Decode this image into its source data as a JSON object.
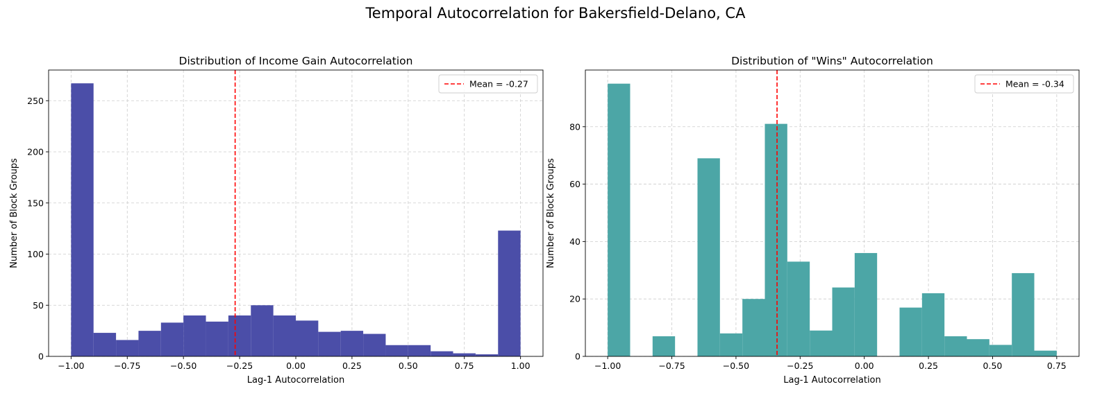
{
  "suptitle": "Temporal Autocorrelation for Bakersfield-Delano, CA",
  "chart_data": [
    {
      "type": "bar",
      "title": "Distribution of Income Gain Autocorrelation",
      "xlabel": "Lag-1 Autocorrelation",
      "ylabel": "Number of Block Groups",
      "xlim": [
        -1.1,
        1.1
      ],
      "ylim": [
        0,
        280
      ],
      "xticks": [
        -1.0,
        -0.75,
        -0.5,
        -0.25,
        0.0,
        0.25,
        0.5,
        0.75,
        1.0
      ],
      "xtick_labels": [
        "−1.00",
        "−0.75",
        "−0.50",
        "−0.25",
        "0.00",
        "0.25",
        "0.50",
        "0.75",
        "1.00"
      ],
      "yticks": [
        0,
        50,
        100,
        150,
        200,
        250
      ],
      "ytick_labels": [
        "0",
        "50",
        "100",
        "150",
        "200",
        "250"
      ],
      "grid": true,
      "bin_edges": [
        -1.0,
        -0.9,
        -0.8,
        -0.7,
        -0.6,
        -0.5,
        -0.4,
        -0.3,
        -0.2,
        -0.1,
        0.0,
        0.1,
        0.2,
        0.3,
        0.4,
        0.5,
        0.6,
        0.7,
        0.8,
        0.9,
        1.0
      ],
      "values": [
        267,
        23,
        16,
        25,
        33,
        40,
        34,
        40,
        50,
        40,
        35,
        24,
        25,
        22,
        11,
        11,
        5,
        3,
        2,
        123
      ],
      "bar_color": "#4b4ea8",
      "mean_line": {
        "value": -0.27,
        "color": "#ff0000",
        "label": "Mean = -0.27"
      },
      "legend_position": "upper right"
    },
    {
      "type": "bar",
      "title": "Distribution of \"Wins\" Autocorrelation",
      "xlabel": "Lag-1 Autocorrelation",
      "ylabel": "Number of Block Groups",
      "xlim": [
        -1.087,
        0.837
      ],
      "ylim": [
        0,
        99.75
      ],
      "xticks": [
        -1.0,
        -0.75,
        -0.5,
        -0.25,
        0.0,
        0.25,
        0.5,
        0.75
      ],
      "xtick_labels": [
        "−1.00",
        "−0.75",
        "−0.50",
        "−0.25",
        "0.00",
        "0.25",
        "0.50",
        "0.75"
      ],
      "yticks": [
        0,
        20,
        40,
        60,
        80
      ],
      "ytick_labels": [
        "0",
        "20",
        "40",
        "60",
        "80"
      ],
      "grid": true,
      "bin_edges": [
        -1.0,
        -0.9125,
        -0.825,
        -0.7375,
        -0.65,
        -0.5625,
        -0.475,
        -0.3875,
        -0.3,
        -0.2125,
        -0.125,
        -0.0375,
        0.05,
        0.1375,
        0.225,
        0.3125,
        0.4,
        0.4875,
        0.575,
        0.6625,
        0.75
      ],
      "values": [
        95,
        0,
        7,
        0,
        69,
        8,
        20,
        81,
        33,
        9,
        24,
        36,
        0,
        17,
        22,
        7,
        6,
        4,
        29,
        2
      ],
      "bar_color": "#4ca6a6",
      "mean_line": {
        "value": -0.34,
        "color": "#ff0000",
        "label": "Mean = -0.34"
      },
      "legend_position": "upper right"
    }
  ]
}
